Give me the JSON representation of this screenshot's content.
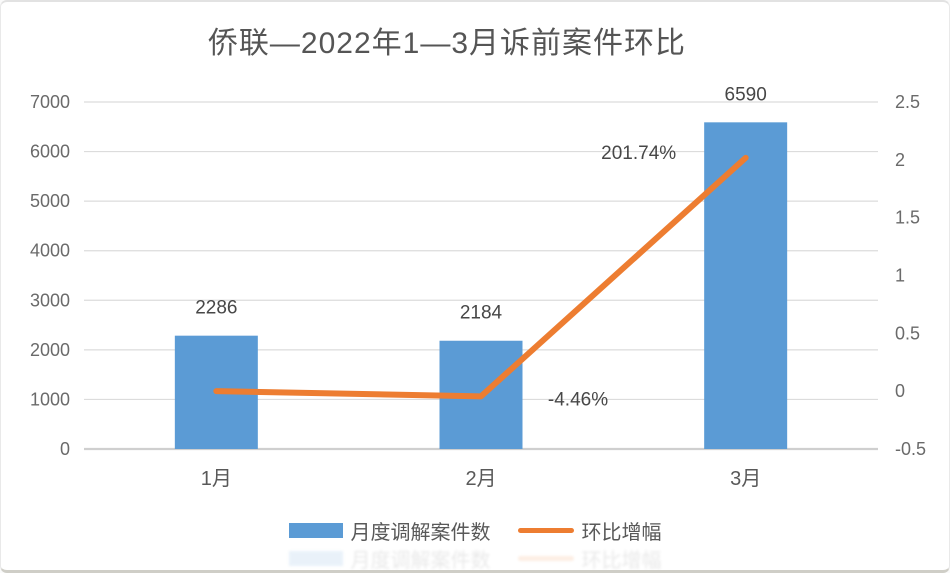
{
  "chart": {
    "title": "侨联—2022年1—3月诉前案件环比"
  },
  "chart_data": {
    "type": "bar",
    "subtype": "bar-line-combo",
    "title": "侨联—2022年1—3月诉前案件环比",
    "categories": [
      "1月",
      "2月",
      "3月"
    ],
    "series": [
      {
        "name": "月度调解案件数",
        "kind": "bar",
        "axis": "left",
        "color": "#5B9BD5",
        "values": [
          2286,
          2184,
          6590
        ],
        "data_labels": [
          "2286",
          "2184",
          "6590"
        ]
      },
      {
        "name": "环比增幅",
        "kind": "line",
        "axis": "right",
        "color": "#ED7D31",
        "values": [
          0,
          -0.0446,
          2.0174
        ],
        "data_labels": [
          "",
          "-4.46%",
          "201.74%"
        ]
      }
    ],
    "left_axis": {
      "min": 0,
      "max": 7000,
      "step": 1000,
      "tick_labels": [
        "0",
        "1000",
        "2000",
        "3000",
        "4000",
        "5000",
        "6000",
        "7000"
      ]
    },
    "right_axis": {
      "min": -0.5,
      "max": 2.5,
      "step": 0.5,
      "tick_labels": [
        "-0.5",
        "0",
        "0.5",
        "1",
        "1.5",
        "2",
        "2.5"
      ]
    },
    "grid": true,
    "legend_position": "bottom",
    "colors": {
      "grid": "#dcdcdc",
      "axis_line": "#cfcfcf",
      "tick_text": "#6a6a6a",
      "data_label_text": "#474747"
    }
  },
  "legend": {
    "items": [
      {
        "label": "月度调解案件数",
        "marker": "bar-swatch",
        "color": "#5B9BD5"
      },
      {
        "label": "环比增幅",
        "marker": "line-swatch",
        "color": "#ED7D31"
      }
    ]
  }
}
